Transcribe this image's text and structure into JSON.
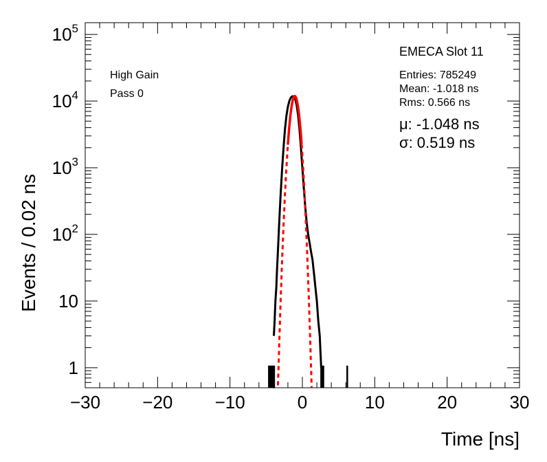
{
  "chart_data": {
    "type": "line",
    "xlabel": "Time [ns]",
    "ylabel": "Events / 0.02 ns",
    "xlim": [
      -30,
      30
    ],
    "ylim": [
      0.5,
      150000
    ],
    "yscale": "log",
    "x_ticks": [
      -30,
      -20,
      -10,
      0,
      10,
      20,
      30
    ],
    "x_tick_labels": [
      "−30",
      "−20",
      "−10",
      "0",
      "10",
      "20",
      "30"
    ],
    "y_ticks": [
      {
        "value": 1,
        "base": "1",
        "exp": ""
      },
      {
        "value": 10,
        "base": "10",
        "exp": ""
      },
      {
        "value": 100,
        "base": "10",
        "exp": "2"
      },
      {
        "value": 1000,
        "base": "10",
        "exp": "3"
      },
      {
        "value": 10000,
        "base": "10",
        "exp": "4"
      },
      {
        "value": 100000,
        "base": "10",
        "exp": "5"
      }
    ],
    "grid": false,
    "annotations": {
      "left_line1": "High Gain",
      "left_line2": "Pass 0",
      "title": "EMECA Slot 11",
      "entries": "Entries: 785249",
      "mean": "Mean: -1.018 ns",
      "rms": "Rms: 0.566 ns",
      "mu": "μ: -1.048 ns",
      "sigma": "σ: 0.519 ns"
    },
    "series": [
      {
        "kind": "histogram",
        "color": "#000000",
        "points": [
          [
            -4.62,
            1
          ],
          [
            -4.48,
            1
          ],
          [
            -4.26,
            1
          ],
          [
            -4.16,
            1
          ],
          [
            -4.06,
            1
          ],
          [
            -3.94,
            3
          ],
          [
            -3.84,
            5
          ],
          [
            -3.72,
            10
          ],
          [
            -3.6,
            16
          ],
          [
            -3.5,
            29
          ],
          [
            -3.4,
            50
          ],
          [
            -3.2,
            150
          ],
          [
            -3.0,
            400
          ],
          [
            -2.8,
            950
          ],
          [
            -2.6,
            2000
          ],
          [
            -2.4,
            3800
          ],
          [
            -2.2,
            6000
          ],
          [
            -2.0,
            8200
          ],
          [
            -1.8,
            10000
          ],
          [
            -1.6,
            11200
          ],
          [
            -1.4,
            11800
          ],
          [
            -1.2,
            11800
          ],
          [
            -1.0,
            10800
          ],
          [
            -0.8,
            8800
          ],
          [
            -0.6,
            6200
          ],
          [
            -0.4,
            3800
          ],
          [
            -0.2,
            2000
          ],
          [
            0.0,
            1000
          ],
          [
            0.2,
            500
          ],
          [
            0.4,
            260
          ],
          [
            0.6,
            150
          ],
          [
            0.8,
            100
          ],
          [
            1.0,
            75
          ],
          [
            1.2,
            55
          ],
          [
            1.4,
            42
          ],
          [
            1.6,
            26
          ],
          [
            1.8,
            16
          ],
          [
            2.0,
            10
          ],
          [
            2.2,
            5
          ],
          [
            2.4,
            3
          ],
          [
            2.6,
            1
          ],
          [
            2.8,
            1
          ],
          [
            3.0,
            1
          ],
          [
            6.2,
            1
          ]
        ]
      },
      {
        "kind": "gaussian-fit",
        "color": "#ff0000",
        "mu": -1.048,
        "sigma": 0.519,
        "amplitude": 11900,
        "fit_range": [
          -2.0,
          -0.1
        ]
      }
    ]
  },
  "colors": {
    "histogram": "#000000",
    "fit": "#ff0000",
    "axis": "#000000",
    "background": "#ffffff"
  }
}
